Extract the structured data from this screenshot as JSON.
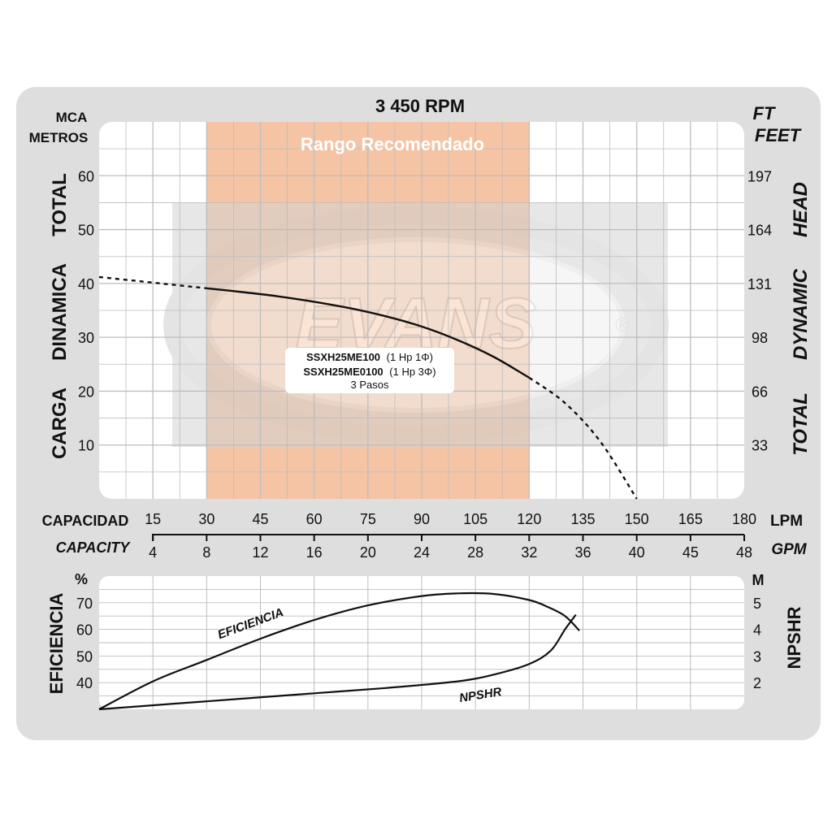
{
  "chart_data": [
    {
      "type": "line",
      "title": "3 450 RPM",
      "band_label": "Rango Recomendado",
      "recommended_range_lpm": [
        30,
        120
      ],
      "left_axis": {
        "units": [
          "MCA",
          "METROS"
        ],
        "label_words": [
          "CARGA",
          "DINAMICA",
          "TOTAL"
        ],
        "ticks": [
          10,
          20,
          30,
          40,
          50,
          60
        ],
        "ylim": [
          0,
          70
        ]
      },
      "right_axis": {
        "units": [
          "FT",
          "FEET"
        ],
        "label_words": [
          "TOTAL",
          "DYNAMIC",
          "HEAD"
        ],
        "ticks": [
          {
            "value": 10,
            "label": "33"
          },
          {
            "value": 20,
            "label": "66"
          },
          {
            "value": 30,
            "label": "98"
          },
          {
            "value": 40,
            "label": "131"
          },
          {
            "value": 50,
            "label": "164"
          },
          {
            "value": 60,
            "label": "197"
          }
        ]
      },
      "x_axis_lpm": {
        "label": "CAPACIDAD",
        "unit": "LPM",
        "ticks": [
          15,
          30,
          45,
          60,
          75,
          90,
          105,
          120,
          135,
          150,
          165,
          180
        ],
        "xlim": [
          0,
          180
        ]
      },
      "x_axis_gpm": {
        "label": "CAPACITY",
        "unit": "GPM",
        "ticks": [
          4,
          8,
          12,
          16,
          20,
          24,
          28,
          32,
          36,
          40,
          45,
          48
        ]
      },
      "series": [
        {
          "name": "",
          "x": [
            0,
            10,
            20,
            30,
            40,
            50,
            60,
            70,
            80,
            90,
            100,
            110,
            120,
            130,
            140,
            150
          ],
          "y": [
            41.2,
            40.5,
            39.8,
            39.1,
            38.4,
            37.6,
            36.6,
            35.4,
            33.9,
            32.0,
            29.5,
            26.4,
            22.5,
            17.8,
            10.5,
            0
          ],
          "solid_range": [
            30,
            120
          ]
        }
      ],
      "legend_box": {
        "model_1": "SSXH25ME100",
        "model_1_spec": "(1 Hp 1Φ)",
        "model_2": "SSXH25ME0100",
        "model_2_spec": "(1 Hp 3Φ)",
        "stages": "3 Pasos"
      },
      "watermark": "EVANS"
    },
    {
      "type": "line",
      "left_axis": {
        "unit": "%",
        "label": "EFICIENCIA",
        "ticks": [
          40,
          50,
          60,
          70
        ],
        "ylim": [
          30,
          80
        ]
      },
      "right_axis": {
        "unit": "M",
        "label": "NPSHR",
        "ticks": [
          2,
          3,
          4,
          5
        ],
        "ylim": [
          1,
          6
        ]
      },
      "series": [
        {
          "name": "EFICIENCIA",
          "axis": "left",
          "x": [
            0,
            15,
            30,
            45,
            60,
            75,
            90,
            100,
            110,
            120,
            125,
            130,
            134
          ],
          "y": [
            30,
            40.5,
            48.5,
            56.5,
            63.5,
            69,
            72.5,
            73.5,
            73.3,
            71,
            68.5,
            65,
            59.5
          ]
        },
        {
          "name": "NPSHR",
          "axis": "right",
          "x": [
            0,
            20,
            40,
            60,
            80,
            100,
            110,
            120,
            126,
            130,
            133
          ],
          "y": [
            1.0,
            1.2,
            1.4,
            1.6,
            1.8,
            2.05,
            2.3,
            2.7,
            3.2,
            4.0,
            4.55
          ]
        }
      ]
    }
  ]
}
